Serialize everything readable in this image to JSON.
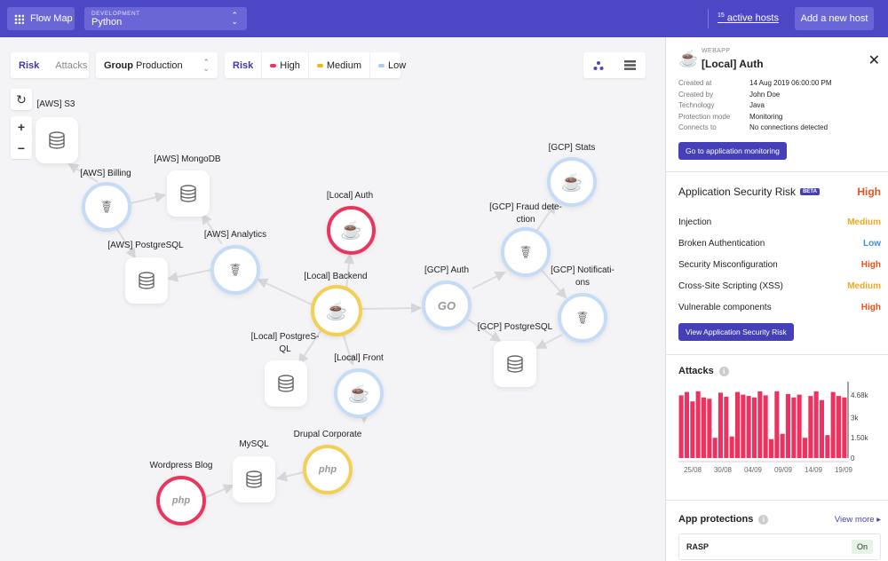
{
  "topbar": {
    "app_label": "Flow Map",
    "env_caption": "DEVELOPMENT",
    "env_value": "Python",
    "active_hosts_count": "15",
    "active_hosts_label": "active hosts",
    "add_host_label": "Add a new host"
  },
  "toolbar": {
    "view_tab_risk": "Risk",
    "view_tab_attacks": "Attacks",
    "group_label": "Group",
    "group_value": "Production",
    "legend_title": "Risk",
    "legend_high": "High",
    "legend_medium": "Medium",
    "legend_low": "Low"
  },
  "colors": {
    "brand": "#4c47c4",
    "high": "#e8375f",
    "medium": "#f2b51c",
    "low": "#a9ccf5",
    "bar": "#ee3260"
  },
  "nodes": {
    "aws_s3": "[AWS] S3",
    "aws_billing": "[AWS] Billing",
    "aws_mongodb": "[AWS] MongoDB",
    "aws_postgresql": "[AWS] PostgreSQL",
    "aws_analytics": "[AWS] Analytics",
    "local_auth": "[Local] Auth",
    "local_backend": "[Local] Backend",
    "local_postgresql": "[Local] PostgreS-QL",
    "local_front": "[Local] Front",
    "gcp_stats": "[GCP] Stats",
    "gcp_fraud": "[GCP] Fraud dete-ction",
    "gcp_auth": "[GCP] Auth",
    "gcp_notifications": "[GCP] Notificati-ons",
    "gcp_postgresql": "[GCP] PostgreSQL",
    "mysql": "MySQL",
    "drupal": "Drupal Corporate",
    "wordpress": "Wordpress Blog",
    "php_glyph": "php",
    "go_glyph": "GO"
  },
  "panel": {
    "type_caption": "WEBAPP",
    "title": "[Local] Auth",
    "details": [
      {
        "k": "Created at",
        "v": "14 Aug 2019 06:00:00 PM"
      },
      {
        "k": "Created by",
        "v": "John Doe"
      },
      {
        "k": "Technology",
        "v": "Java"
      },
      {
        "k": "Protection mode",
        "v": "Monitoring"
      },
      {
        "k": "Connects to",
        "v": "No connections detected"
      }
    ],
    "go_monitoring_label": "Go to application monitoring",
    "risk_title": "Application Security Risk",
    "risk_badge": "BETA",
    "risk_overall": "High",
    "risks": [
      {
        "name": "Injection",
        "level": "Medium"
      },
      {
        "name": "Broken Authentication",
        "level": "Low"
      },
      {
        "name": "Security Misconfiguration",
        "level": "High"
      },
      {
        "name": "Cross-Site Scripting (XSS)",
        "level": "Medium"
      },
      {
        "name": "Vulnerable components",
        "level": "High"
      }
    ],
    "view_risk_label": "View Application Security Risk",
    "attacks_title": "Attacks",
    "protections_title": "App protections",
    "view_more_label": "View more",
    "rasp_label": "RASP",
    "rasp_state": "On"
  },
  "chart_data": {
    "type": "bar",
    "title": "Attacks",
    "x_tick_labels": [
      "25/08",
      "30/08",
      "04/09",
      "09/09",
      "14/09",
      "19/09"
    ],
    "y_tick_labels": [
      "4.68k",
      "3k",
      "1.50k",
      "0"
    ],
    "ylim": [
      0,
      5400
    ],
    "values": [
      4650,
      4900,
      4200,
      4950,
      4500,
      4400,
      1500,
      4850,
      4550,
      1600,
      4900,
      4700,
      4600,
      4500,
      4950,
      4650,
      1400,
      4950,
      1800,
      4750,
      4500,
      4700,
      1500,
      4600,
      4950,
      4300,
      1700,
      4900,
      4600,
      4500
    ],
    "color": "#ee3260",
    "grid": false
  }
}
